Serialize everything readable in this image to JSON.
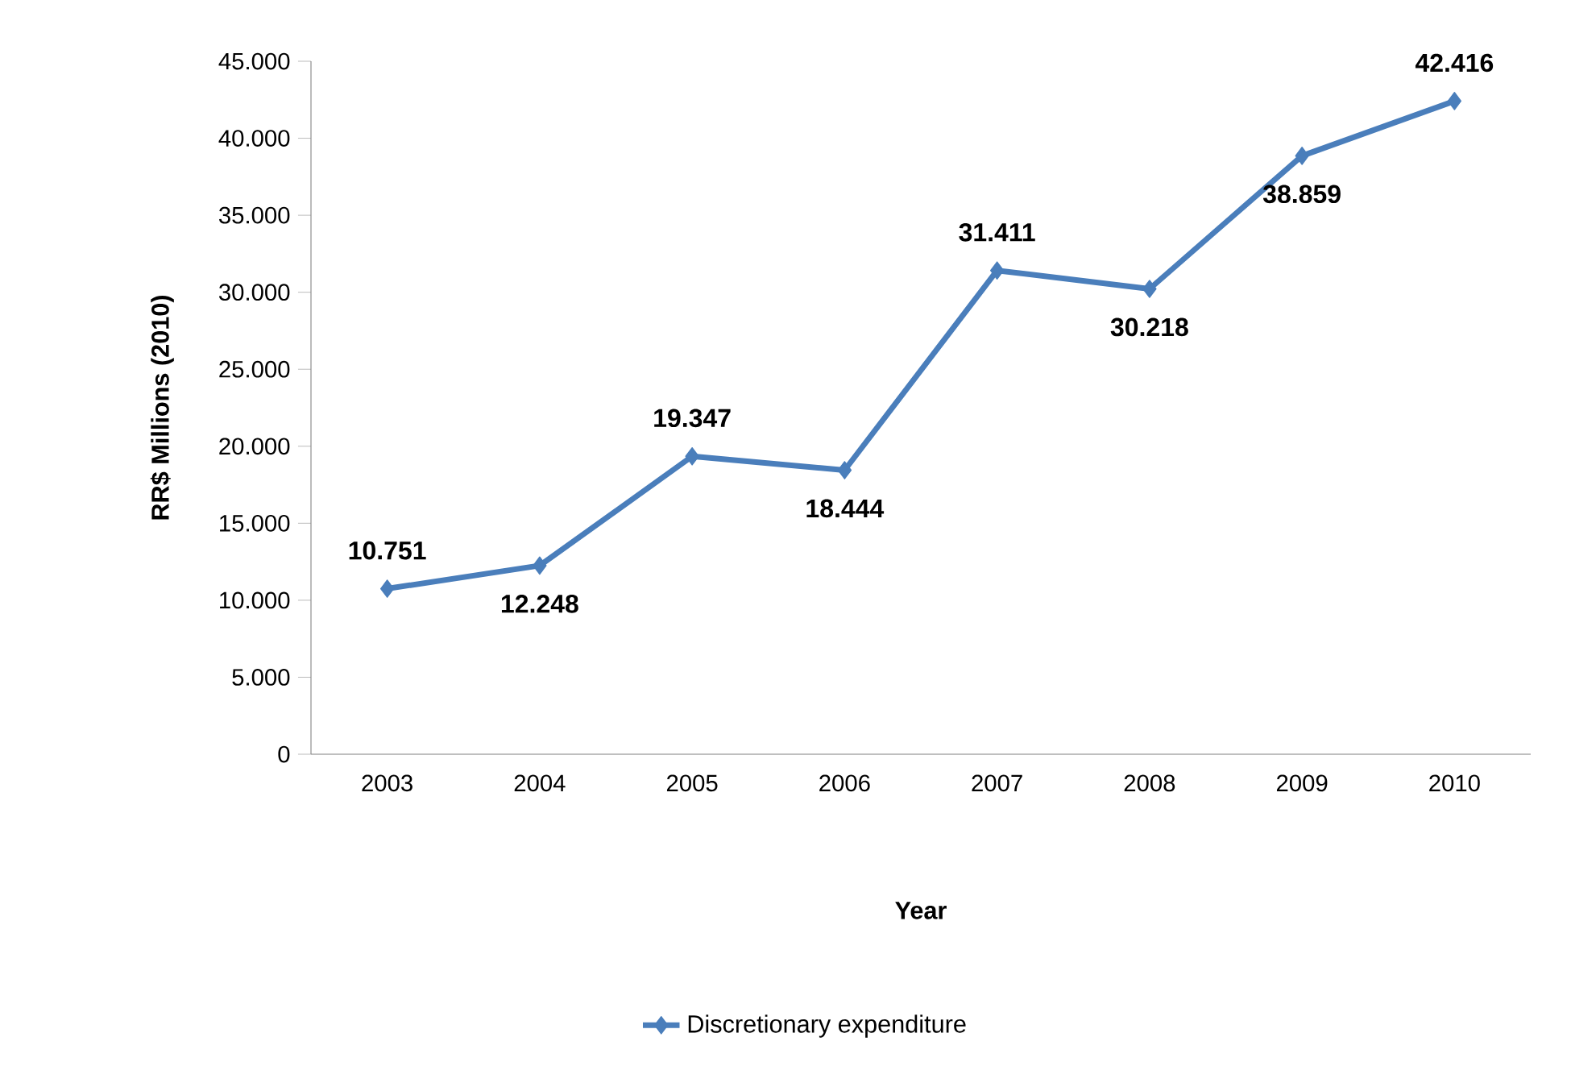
{
  "chart_data": {
    "type": "line",
    "xlabel": "Year",
    "ylabel": "RR$ Millions  (2010)",
    "categories": [
      "2003",
      "2004",
      "2005",
      "2006",
      "2007",
      "2008",
      "2009",
      "2010"
    ],
    "series": [
      {
        "name": "Discretionary expenditure",
        "color": "#4a7ebb",
        "values": [
          10751,
          12248,
          19347,
          18444,
          31411,
          30218,
          38859,
          42416
        ],
        "value_labels": [
          "10.751",
          "12.248",
          "19.347",
          "18.444",
          "31.411",
          "30.218",
          "38.859",
          "42.416"
        ]
      }
    ],
    "ylim": [
      0,
      45000
    ],
    "yticks": [
      {
        "value": 0,
        "label": "0"
      },
      {
        "value": 5000,
        "label": "5.000"
      },
      {
        "value": 10000,
        "label": "10.000"
      },
      {
        "value": 15000,
        "label": "15.000"
      },
      {
        "value": 20000,
        "label": "20.000"
      },
      {
        "value": 25000,
        "label": "25.000"
      },
      {
        "value": 30000,
        "label": "30.000"
      },
      {
        "value": 35000,
        "label": "35.000"
      },
      {
        "value": 40000,
        "label": "40.000"
      },
      {
        "value": 45000,
        "label": "45.000"
      }
    ],
    "marker": "diamond",
    "line_style": "solid",
    "legend": "bottom",
    "grid": false
  }
}
